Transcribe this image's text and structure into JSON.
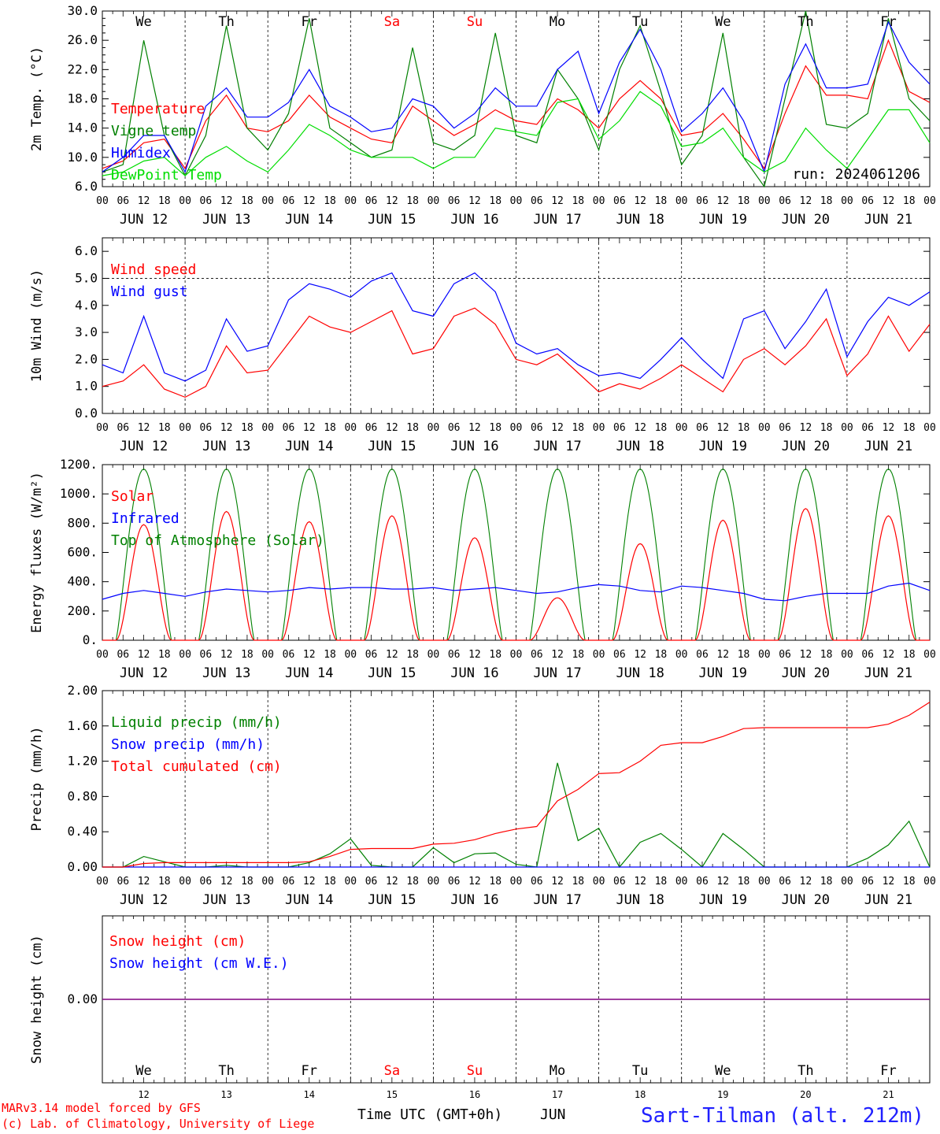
{
  "colors": {
    "red": "#ff0000",
    "green": "#008000",
    "blue": "#0000ff",
    "lightgreen": "#00dd00",
    "purple": "#800080"
  },
  "days": [
    {
      "label": "We",
      "weekend": false
    },
    {
      "label": "Th",
      "weekend": false
    },
    {
      "label": "Fr",
      "weekend": false
    },
    {
      "label": "Sa",
      "weekend": true
    },
    {
      "label": "Su",
      "weekend": true
    },
    {
      "label": "Mo",
      "weekend": false
    },
    {
      "label": "Tu",
      "weekend": false
    },
    {
      "label": "We",
      "weekend": false
    },
    {
      "label": "Th",
      "weekend": false
    },
    {
      "label": "Fr",
      "weekend": false
    }
  ],
  "dates": [
    "JUN 12",
    "JUN 13",
    "JUN 14",
    "JUN 15",
    "JUN 16",
    "JUN 17",
    "JUN 18",
    "JUN 19",
    "JUN 20",
    "JUN 21"
  ],
  "hour_ticks": [
    "00",
    "06",
    "12",
    "18"
  ],
  "bottom_day_numbers": [
    "12",
    "13",
    "14",
    "15",
    "16",
    "17",
    "18",
    "19",
    "20",
    "21"
  ],
  "footer": {
    "model": "MARv3.14 model forced by GFS",
    "lab": "(c) Lab. of Climatology, University of Liege",
    "xlabel": "Time UTC (GMT+0h)",
    "month": "JUN",
    "station": "Sart-Tilman (alt. 212m)"
  },
  "chart_data": [
    {
      "type": "line",
      "ylabel": "2m Temp. (°C)",
      "ylim": [
        6.0,
        30.0
      ],
      "yticks": [
        "6.0",
        "10.0",
        "14.0",
        "18.0",
        "22.0",
        "26.0",
        "30.0"
      ],
      "run_label": "run: 2024061206",
      "legend": [
        {
          "name": "Temperature",
          "color": "#ff0000"
        },
        {
          "name": "Vigne temp",
          "color": "#008000"
        },
        {
          "name": "Humidex",
          "color": "#0000ff"
        },
        {
          "name": "DewPoint Temp",
          "color": "#00dd00"
        }
      ],
      "x_hours": [
        0,
        6,
        12,
        18,
        24,
        30,
        36,
        42,
        48,
        54,
        60,
        66,
        72,
        78,
        84,
        90,
        96,
        102,
        108,
        114,
        120,
        126,
        132,
        138,
        144,
        150,
        156,
        162,
        168,
        174,
        180,
        186,
        192,
        198,
        204,
        210,
        216,
        222,
        228,
        234,
        240
      ],
      "series": [
        {
          "name": "Temperature",
          "color": "#ff0000",
          "values": [
            8.5,
            9.5,
            12.0,
            12.5,
            8.5,
            15.0,
            18.5,
            14.0,
            13.5,
            15.0,
            18.5,
            15.5,
            14.0,
            12.5,
            12.0,
            17.0,
            15.0,
            13.0,
            14.5,
            16.5,
            15.0,
            14.5,
            18.0,
            16.5,
            14.0,
            18.0,
            20.5,
            18.0,
            13.0,
            13.5,
            16.0,
            12.5,
            8.5,
            16.0,
            22.5,
            18.5,
            18.5,
            18.0,
            26.0,
            19.0,
            17.5
          ]
        },
        {
          "name": "Vigne temp",
          "color": "#008000",
          "values": [
            8.0,
            9.0,
            26.0,
            13.0,
            7.5,
            13.0,
            28.0,
            14.0,
            11.0,
            16.0,
            29.0,
            14.0,
            12.0,
            10.0,
            11.0,
            25.0,
            12.0,
            11.0,
            13.0,
            27.0,
            13.0,
            12.0,
            22.0,
            18.0,
            11.0,
            22.0,
            28.0,
            19.0,
            9.0,
            13.0,
            27.0,
            10.0,
            6.0,
            18.0,
            30.0,
            14.5,
            14.0,
            16.0,
            29.0,
            18.0,
            15.0
          ]
        },
        {
          "name": "Humidex",
          "color": "#0000ff",
          "values": [
            8.0,
            10.0,
            13.0,
            13.0,
            8.0,
            17.0,
            19.5,
            15.5,
            15.5,
            17.5,
            22.0,
            17.0,
            15.5,
            13.5,
            14.0,
            18.0,
            17.0,
            14.0,
            16.0,
            19.5,
            17.0,
            17.0,
            22.0,
            24.5,
            16.0,
            23.0,
            27.5,
            22.0,
            13.5,
            16.0,
            19.5,
            15.0,
            8.0,
            20.0,
            25.5,
            19.5,
            19.5,
            20.0,
            28.5,
            23.0,
            20.0
          ]
        },
        {
          "name": "DewPoint Temp",
          "color": "#00dd00",
          "values": [
            7.5,
            8.0,
            9.5,
            10.0,
            7.5,
            10.0,
            11.5,
            9.5,
            8.0,
            11.0,
            14.5,
            13.0,
            11.0,
            10.0,
            10.0,
            10.0,
            8.5,
            10.0,
            10.0,
            14.0,
            13.5,
            13.0,
            17.5,
            18.0,
            12.5,
            15.0,
            19.0,
            17.0,
            11.5,
            12.0,
            14.0,
            10.0,
            8.0,
            9.5,
            14.0,
            11.0,
            8.5,
            12.5,
            16.5,
            16.5,
            12.0
          ]
        }
      ]
    },
    {
      "type": "line",
      "ylabel": "10m Wind (m/s)",
      "ylim": [
        0.0,
        6.5
      ],
      "yticks": [
        "0.0",
        "1.0",
        "2.0",
        "3.0",
        "4.0",
        "5.0",
        "6.0"
      ],
      "legend": [
        {
          "name": "Wind speed",
          "color": "#ff0000"
        },
        {
          "name": "Wind gust",
          "color": "#0000ff"
        }
      ],
      "x_hours": [
        0,
        6,
        12,
        18,
        24,
        30,
        36,
        42,
        48,
        54,
        60,
        66,
        72,
        78,
        84,
        90,
        96,
        102,
        108,
        114,
        120,
        126,
        132,
        138,
        144,
        150,
        156,
        162,
        168,
        174,
        180,
        186,
        192,
        198,
        204,
        210,
        216,
        222,
        228,
        234,
        240
      ],
      "series": [
        {
          "name": "Wind speed",
          "color": "#ff0000",
          "values": [
            1.0,
            1.2,
            1.8,
            0.9,
            0.6,
            1.0,
            2.5,
            1.5,
            1.6,
            2.6,
            3.6,
            3.2,
            3.0,
            3.4,
            3.8,
            2.2,
            2.4,
            3.6,
            3.9,
            3.3,
            2.0,
            1.8,
            2.2,
            1.5,
            0.8,
            1.1,
            0.9,
            1.3,
            1.8,
            1.3,
            0.8,
            2.0,
            2.4,
            1.8,
            2.5,
            3.5,
            1.4,
            2.2,
            3.6,
            2.3,
            3.3
          ]
        },
        {
          "name": "Wind gust",
          "color": "#0000ff",
          "values": [
            1.8,
            1.5,
            3.6,
            1.5,
            1.2,
            1.6,
            3.5,
            2.3,
            2.5,
            4.2,
            4.8,
            4.6,
            4.3,
            4.9,
            5.2,
            3.8,
            3.6,
            4.8,
            5.2,
            4.5,
            2.6,
            2.2,
            2.4,
            1.8,
            1.4,
            1.5,
            1.3,
            2.0,
            2.8,
            2.0,
            1.3,
            3.5,
            3.8,
            2.4,
            3.4,
            4.6,
            2.1,
            3.4,
            4.3,
            4.0,
            4.5
          ]
        }
      ]
    },
    {
      "type": "line",
      "ylabel": "Energy fluxes (W/m²)",
      "ylim": [
        0,
        1200
      ],
      "yticks": [
        "0.",
        "200.",
        "400.",
        "600.",
        "800.",
        "1000.",
        "1200."
      ],
      "legend": [
        {
          "name": "Solar",
          "color": "#ff0000"
        },
        {
          "name": "Infrared",
          "color": "#0000ff"
        },
        {
          "name": "Top of Atmosphere (Solar)",
          "color": "#008000"
        }
      ],
      "daily_toa_peak": 1170,
      "daily_solar_peak": [
        790,
        880,
        810,
        850,
        700,
        290,
        660,
        820,
        900,
        850
      ],
      "infrared": [
        280,
        320,
        340,
        320,
        300,
        330,
        350,
        340,
        330,
        340,
        360,
        350,
        360,
        360,
        350,
        350,
        360,
        340,
        350,
        360,
        340,
        320,
        330,
        360,
        380,
        370,
        340,
        330,
        370,
        360,
        340,
        320,
        280,
        270,
        300,
        320,
        320,
        320,
        370,
        390,
        340
      ]
    },
    {
      "type": "line",
      "ylabel": "Precip (mm/h)",
      "ylim": [
        0.0,
        2.0
      ],
      "yticks": [
        "0.00",
        "0.40",
        "0.80",
        "1.20",
        "1.60",
        "2.00"
      ],
      "legend": [
        {
          "name": "Liquid precip (mm/h)",
          "color": "#008000"
        },
        {
          "name": "Snow precip (mm/h)",
          "color": "#0000ff"
        },
        {
          "name": "Total cumulated (cm)",
          "color": "#ff0000"
        }
      ],
      "x_hours": [
        0,
        6,
        12,
        18,
        24,
        30,
        36,
        42,
        48,
        54,
        60,
        66,
        72,
        78,
        84,
        90,
        96,
        102,
        108,
        114,
        120,
        126,
        132,
        138,
        144,
        150,
        156,
        162,
        168,
        174,
        180,
        186,
        192,
        198,
        204,
        210,
        216,
        222,
        228,
        234,
        240
      ],
      "series": [
        {
          "name": "Total cumulated (cm)",
          "color": "#ff0000",
          "values": [
            0.0,
            0.0,
            0.04,
            0.05,
            0.05,
            0.05,
            0.05,
            0.05,
            0.05,
            0.05,
            0.06,
            0.12,
            0.2,
            0.21,
            0.21,
            0.21,
            0.26,
            0.27,
            0.31,
            0.38,
            0.43,
            0.46,
            0.75,
            0.88,
            1.06,
            1.07,
            1.2,
            1.38,
            1.41,
            1.41,
            1.48,
            1.57,
            1.58,
            1.58,
            1.58,
            1.58,
            1.58,
            1.58,
            1.62,
            1.72,
            1.87
          ]
        },
        {
          "name": "Liquid precip (mm/h)",
          "color": "#008000",
          "values": [
            0.0,
            0.0,
            0.12,
            0.06,
            0.0,
            0.0,
            0.02,
            0.0,
            0.0,
            0.0,
            0.05,
            0.15,
            0.32,
            0.02,
            0.0,
            0.0,
            0.22,
            0.05,
            0.15,
            0.16,
            0.03,
            0.0,
            1.18,
            0.3,
            0.44,
            0.0,
            0.28,
            0.38,
            0.2,
            0.0,
            0.38,
            0.2,
            0.0,
            0.0,
            0.0,
            0.0,
            0.0,
            0.1,
            0.25,
            0.52,
            0.0
          ]
        },
        {
          "name": "Snow precip (mm/h)",
          "color": "#0000ff",
          "values": [
            0,
            0,
            0,
            0,
            0,
            0,
            0,
            0,
            0,
            0,
            0,
            0,
            0,
            0,
            0,
            0,
            0,
            0,
            0,
            0,
            0,
            0,
            0,
            0,
            0,
            0,
            0,
            0,
            0,
            0,
            0,
            0,
            0,
            0,
            0,
            0,
            0,
            0,
            0,
            0,
            0
          ]
        }
      ]
    },
    {
      "type": "line",
      "ylabel": "Snow height (cm)",
      "ylim": [
        -1.0,
        1.0
      ],
      "yticks": [
        "0.00"
      ],
      "legend": [
        {
          "name": "Snow height (cm)",
          "color": "#ff0000"
        },
        {
          "name": "Snow height (cm W.E.)",
          "color": "#0000ff"
        }
      ],
      "value": 0.0
    }
  ]
}
